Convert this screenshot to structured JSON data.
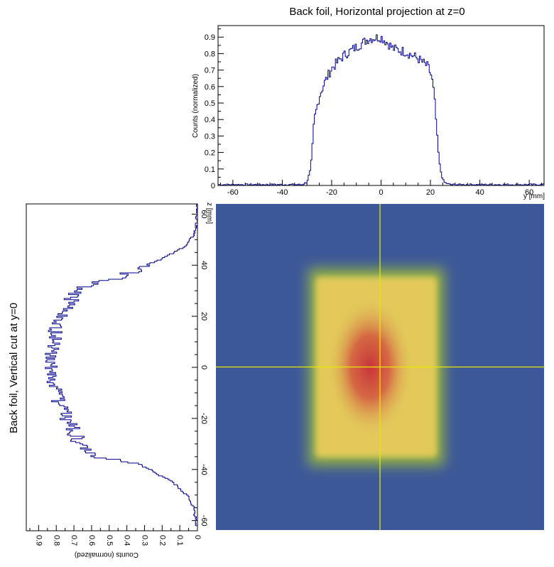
{
  "chart_data": [
    {
      "type": "line",
      "name": "horizontal-projection",
      "title": "Back foil, Horizontal projection at z=0",
      "xlabel": "y [mm]",
      "ylabel": "Counts (normalized)",
      "xlim": [
        -66,
        66
      ],
      "ylim": [
        0,
        0.97
      ],
      "xticks": [
        -60,
        -40,
        -20,
        0,
        20,
        40,
        60
      ],
      "yticks": [
        0,
        0.1,
        0.2,
        0.3,
        0.4,
        0.5,
        0.6,
        0.7,
        0.8,
        0.9
      ],
      "line_color": "#00008b",
      "profile": {
        "x": [
          -66,
          -32,
          -30,
          -28.5,
          -27,
          -25,
          -23,
          -20,
          -15,
          -10,
          -5,
          0,
          3,
          5,
          10,
          15,
          19,
          20.5,
          21.5,
          22.5,
          23.5,
          24.5,
          25.5,
          28,
          66
        ],
        "y": [
          0.005,
          0.005,
          0.02,
          0.1,
          0.4,
          0.54,
          0.62,
          0.71,
          0.79,
          0.84,
          0.89,
          0.9,
          0.86,
          0.83,
          0.81,
          0.77,
          0.72,
          0.66,
          0.55,
          0.35,
          0.15,
          0.06,
          0.02,
          0.005,
          0.005
        ]
      }
    },
    {
      "type": "line",
      "name": "vertical-cut",
      "title": "Back foil, Vertical cut at y=0",
      "xlabel": "z [mm]",
      "ylabel": "Counts (normalized)",
      "xlim": [
        -64,
        64
      ],
      "ylim": [
        0,
        0.97
      ],
      "xticks": [
        -60,
        -40,
        -20,
        0,
        20,
        40,
        60
      ],
      "yticks": [
        0,
        0.1,
        0.2,
        0.3,
        0.4,
        0.5,
        0.6,
        0.7,
        0.8,
        0.9
      ],
      "line_color": "#00008b",
      "profile": {
        "x": [
          -64,
          -55,
          -50,
          -45,
          -42,
          -40,
          -38,
          -36,
          -35,
          -33,
          -30,
          -25,
          -20,
          -15,
          -10,
          -5,
          0,
          5,
          10,
          15,
          20,
          25,
          28,
          31,
          33,
          34,
          36,
          38,
          40,
          42,
          45,
          48,
          52,
          56,
          64
        ],
        "y": [
          0.0,
          0.02,
          0.06,
          0.14,
          0.22,
          0.27,
          0.34,
          0.48,
          0.6,
          0.64,
          0.67,
          0.7,
          0.74,
          0.78,
          0.8,
          0.82,
          0.83,
          0.84,
          0.82,
          0.8,
          0.77,
          0.73,
          0.7,
          0.66,
          0.6,
          0.5,
          0.42,
          0.35,
          0.3,
          0.22,
          0.13,
          0.06,
          0.02,
          0.005,
          0.0
        ]
      }
    },
    {
      "type": "heatmap",
      "name": "beam-spot-2d",
      "xlabel": "y [mm]",
      "ylabel": "z [mm]",
      "xlim": [
        -66,
        66
      ],
      "ylim": [
        -65,
        65
      ],
      "yticks": [
        -60,
        -40,
        -20,
        0,
        20,
        40,
        60
      ],
      "spot": {
        "y_range": [
          -27,
          24
        ],
        "z_range": [
          -37,
          37
        ],
        "core_center": [
          -4,
          0
        ]
      },
      "crosshair": {
        "y": 0,
        "z": 0
      },
      "colors": {
        "background": "#3d5898",
        "edge": "#93b145",
        "body": "#e2c95a",
        "core": "#c9343a",
        "crosshair": "#e6e600"
      }
    }
  ]
}
